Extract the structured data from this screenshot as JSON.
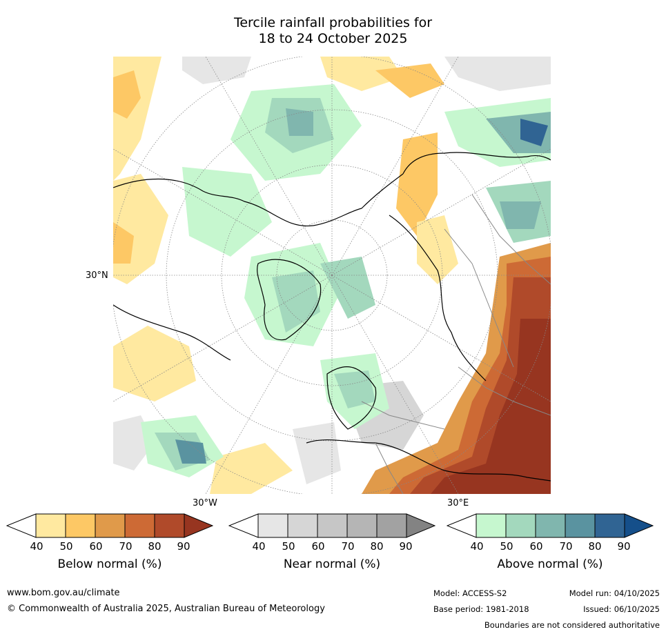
{
  "title": {
    "line1": "Tercile rainfall probabilities for",
    "line2": "18 to 24 October 2025"
  },
  "map": {
    "projection": "north-polar-stereographic",
    "labels": {
      "lat_30n": "30°N",
      "lon_30w": "30°W",
      "lon_30e": "30°E"
    }
  },
  "legends": [
    {
      "label": "Below normal (%)",
      "ticks": [
        "40",
        "50",
        "60",
        "70",
        "80",
        "90"
      ],
      "colors": [
        "#ffffff",
        "#ffe9a0",
        "#fdc865",
        "#e09a4a",
        "#cd6a35",
        "#b04a2a",
        "#973520"
      ]
    },
    {
      "label": "Near normal (%)",
      "ticks": [
        "40",
        "50",
        "60",
        "70",
        "80",
        "90"
      ],
      "colors": [
        "#ffffff",
        "#e6e6e6",
        "#d6d6d6",
        "#c6c6c6",
        "#b5b5b5",
        "#a2a2a2",
        "#838383"
      ]
    },
    {
      "label": "Above normal (%)",
      "ticks": [
        "40",
        "50",
        "60",
        "70",
        "80",
        "90"
      ],
      "colors": [
        "#ffffff",
        "#c6f7cf",
        "#a3d8bd",
        "#80b6ae",
        "#5a93a0",
        "#306493",
        "#154f8a"
      ]
    }
  ],
  "footer": {
    "website": "www.bom.gov.au/climate",
    "copyright": "© Commonwealth of Australia 2025, Australian Bureau of Meteorology",
    "model": "Model: ACCESS-S2",
    "model_run": "Model run: 04/10/2025",
    "base_period": "Base period: 1981-2018",
    "issued": "Issued: 06/10/2025",
    "disclaimer": "Boundaries are not considered authoritative"
  }
}
